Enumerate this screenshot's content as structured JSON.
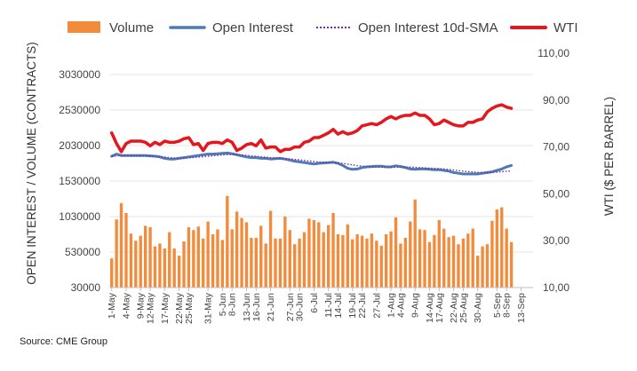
{
  "source": "Source: CME Group",
  "chart_data": {
    "type": "bar",
    "y_axis_left": {
      "label": "OPEN INTEREST / VOLUME (CONTRACTS)",
      "range": [
        30000,
        3330000
      ],
      "ticks": [
        30000,
        530000,
        1030000,
        1530000,
        2030000,
        2530000,
        3030000
      ],
      "tick_labels": [
        "30000",
        "530000",
        "1030000",
        "1530000",
        "2030000",
        "2530000",
        "3030000"
      ]
    },
    "y_axis_right": {
      "label": "WTI ($ PER BARREL)",
      "range": [
        10,
        110
      ],
      "ticks": [
        10,
        30,
        50,
        70,
        90,
        110
      ],
      "tick_labels": [
        "10,00",
        "30,00",
        "50,00",
        "70,00",
        "90,00",
        "110,00"
      ]
    },
    "x_tick_labels": [
      "1-May",
      "4-May",
      "9-May",
      "12-May",
      "17-May",
      "22-May",
      "25-May",
      "31-May",
      "5-Jun",
      "8-Jun",
      "13-Jun",
      "16-Jun",
      "21-Jun",
      "27-Jun",
      "30-Jun",
      "6-Jul",
      "11-Jul",
      "14-Jul",
      "19-Jul",
      "22-Jul",
      "27-Jul",
      "1-Aug",
      "4-Aug",
      "9-Aug",
      "14-Aug",
      "17-Aug",
      "22-Aug",
      "25-Aug",
      "30-Aug",
      "5-Sep",
      "8-Sep",
      "13-Sep"
    ],
    "x_tick_indices": [
      0,
      3,
      6,
      8,
      11,
      14,
      16,
      20,
      23,
      25,
      28,
      30,
      33,
      37,
      39,
      42,
      45,
      47,
      50,
      52,
      55,
      58,
      60,
      63,
      66,
      68,
      71,
      73,
      76,
      80,
      82,
      85
    ],
    "n_slots": 88,
    "legend": [
      {
        "name": "Volume",
        "color": "#F28C3C",
        "kind": "bar"
      },
      {
        "name": "Open Interest",
        "color": "#4E7AB5",
        "kind": "line"
      },
      {
        "name": "Open Interest 10d-SMA",
        "color": "#7030A0",
        "kind": "dotted"
      },
      {
        "name": "WTI",
        "color": "#E3171D",
        "kind": "thick"
      }
    ],
    "series": [
      {
        "name": "Volume",
        "axis": "left",
        "values": [
          440000,
          990000,
          1220000,
          1080000,
          790000,
          690000,
          760000,
          900000,
          880000,
          610000,
          650000,
          580000,
          810000,
          580000,
          480000,
          680000,
          880000,
          840000,
          890000,
          720000,
          960000,
          780000,
          850000,
          700000,
          1320000,
          850000,
          1100000,
          1010000,
          950000,
          730000,
          730000,
          900000,
          650000,
          1110000,
          720000,
          720000,
          1030000,
          840000,
          640000,
          720000,
          810000,
          1000000,
          980000,
          950000,
          810000,
          910000,
          1080000,
          780000,
          770000,
          920000,
          710000,
          780000,
          760000,
          720000,
          790000,
          690000,
          620000,
          780000,
          820000,
          1020000,
          650000,
          730000,
          960000,
          1270000,
          850000,
          840000,
          670000,
          770000,
          980000,
          860000,
          740000,
          760000,
          640000,
          720000,
          790000,
          860000,
          480000,
          610000,
          640000,
          970000,
          1130000,
          1160000,
          860000,
          670000,
          null,
          null,
          null,
          null
        ]
      },
      {
        "name": "Open Interest",
        "axis": "left",
        "values": [
          1880000,
          1910000,
          1890000,
          1890000,
          1890000,
          1890000,
          1890000,
          1890000,
          1885000,
          1880000,
          1870000,
          1850000,
          1840000,
          1840000,
          1850000,
          1860000,
          1870000,
          1880000,
          1890000,
          1900000,
          1910000,
          1910000,
          1915000,
          1920000,
          1925000,
          1915000,
          1900000,
          1885000,
          1870000,
          1860000,
          1860000,
          1850000,
          1850000,
          1840000,
          1845000,
          1850000,
          1840000,
          1825000,
          1810000,
          1800000,
          1790000,
          1780000,
          1770000,
          1780000,
          1785000,
          1790000,
          1795000,
          1780000,
          1750000,
          1710000,
          1695000,
          1700000,
          1720000,
          1730000,
          1735000,
          1740000,
          1740000,
          1730000,
          1730000,
          1745000,
          1735000,
          1720000,
          1700000,
          1695000,
          1700000,
          1700000,
          1695000,
          1690000,
          1690000,
          1680000,
          1670000,
          1650000,
          1640000,
          1630000,
          1630000,
          1630000,
          1630000,
          1640000,
          1650000,
          1660000,
          1680000,
          1700000,
          1730000,
          1750000,
          null,
          null,
          null,
          null
        ]
      },
      {
        "name": "Open Interest 10d-SMA",
        "axis": "left",
        "values": [
          1880000,
          1885000,
          1888000,
          1888000,
          1889000,
          1889000,
          1888000,
          1887000,
          1885000,
          1882000,
          1876000,
          1868000,
          1860000,
          1855000,
          1853000,
          1854000,
          1857000,
          1862000,
          1868000,
          1874000,
          1880000,
          1886000,
          1892000,
          1898000,
          1902000,
          1903000,
          1902000,
          1898000,
          1892000,
          1885000,
          1878000,
          1871000,
          1865000,
          1859000,
          1854000,
          1850000,
          1846000,
          1841000,
          1835000,
          1828000,
          1821000,
          1813000,
          1805000,
          1798000,
          1793000,
          1790000,
          1788000,
          1785000,
          1778000,
          1769000,
          1758000,
          1748000,
          1740000,
          1734000,
          1730000,
          1727000,
          1725000,
          1724000,
          1724000,
          1725000,
          1728000,
          1729000,
          1727000,
          1723000,
          1719000,
          1715000,
          1711000,
          1708000,
          1705000,
          1700000,
          1693000,
          1685000,
          1677000,
          1670000,
          1663000,
          1657000,
          1652000,
          1650000,
          1650000,
          1652000,
          1656000,
          1662000,
          1668000,
          1674000,
          null,
          null,
          null,
          null
        ]
      },
      {
        "name": "WTI",
        "axis": "right",
        "values": [
          76.0,
          71.5,
          68.0,
          71.5,
          72.5,
          72.5,
          72.5,
          72.0,
          70.5,
          72.0,
          71.0,
          72.5,
          72.0,
          72.0,
          72.5,
          73.5,
          74.0,
          71.0,
          71.5,
          68.5,
          71.5,
          72.0,
          72.0,
          71.5,
          73.0,
          72.0,
          68.5,
          69.5,
          71.0,
          71.5,
          70.5,
          73.0,
          69.5,
          70.0,
          70.0,
          68.0,
          69.0,
          69.0,
          70.0,
          70.0,
          72.0,
          72.5,
          74.0,
          74.0,
          75.0,
          76.0,
          77.5,
          75.5,
          76.5,
          75.5,
          76.0,
          77.0,
          79.0,
          79.5,
          80.0,
          79.5,
          80.5,
          82.0,
          83.0,
          82.0,
          83.0,
          83.5,
          83.5,
          84.5,
          83.5,
          83.5,
          82.0,
          79.5,
          80.0,
          81.5,
          80.5,
          79.5,
          79.0,
          79.0,
          80.5,
          80.5,
          81.5,
          82.0,
          85.0,
          86.5,
          87.5,
          88.0,
          87.0,
          86.5,
          null,
          null,
          null,
          null
        ]
      }
    ]
  }
}
